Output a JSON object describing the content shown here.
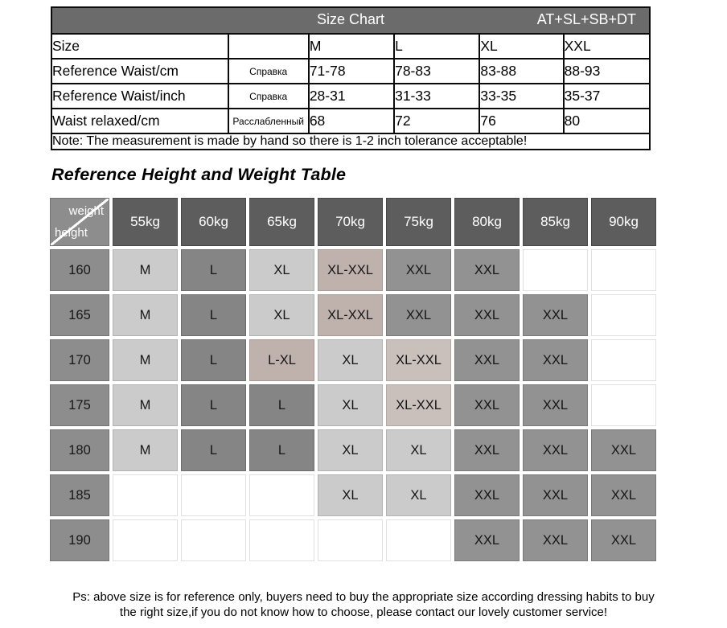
{
  "size_chart": {
    "title": "Size Chart",
    "code": "AT+SL+SB+DT",
    "rows": [
      {
        "label": "Size",
        "translation": "",
        "values": [
          "M",
          "L",
          "XL",
          "XXL"
        ]
      },
      {
        "label": "Reference Waist/cm",
        "translation": "Справка",
        "values": [
          "71-78",
          "78-83",
          "83-88",
          "88-93"
        ]
      },
      {
        "label": "Reference Waist/inch",
        "translation": "Справка",
        "values": [
          "28-31",
          "31-33",
          "33-35",
          "35-37"
        ]
      },
      {
        "label": "Waist relaxed/cm",
        "translation": "Расслабленный",
        "values": [
          "68",
          "72",
          "76",
          "80"
        ]
      }
    ],
    "note": "Note: The measurement is made by hand so there is 1-2 inch tolerance acceptable!"
  },
  "heading": "Reference Height and Weight Table",
  "matrix": {
    "corner": {
      "top_label": "weight",
      "bottom_label": "height"
    },
    "weight_headers": [
      "55kg",
      "60kg",
      "65kg",
      "70kg",
      "75kg",
      "80kg",
      "85kg",
      "90kg"
    ],
    "rows": [
      {
        "height": "160",
        "cells": [
          {
            "text": "M",
            "tone": "light"
          },
          {
            "text": "L",
            "tone": "dark"
          },
          {
            "text": "XL",
            "tone": "light"
          },
          {
            "text": "XL-XXL",
            "tone": "tan"
          },
          {
            "text": "XXL",
            "tone": "mid"
          },
          {
            "text": "XXL",
            "tone": "mid"
          },
          {
            "text": "",
            "tone": "empty"
          },
          {
            "text": "",
            "tone": "empty"
          }
        ]
      },
      {
        "height": "165",
        "cells": [
          {
            "text": "M",
            "tone": "light"
          },
          {
            "text": "L",
            "tone": "dark"
          },
          {
            "text": "XL",
            "tone": "light"
          },
          {
            "text": "XL-XXL",
            "tone": "tan"
          },
          {
            "text": "XXL",
            "tone": "mid"
          },
          {
            "text": "XXL",
            "tone": "mid"
          },
          {
            "text": "XXL",
            "tone": "mid"
          },
          {
            "text": "",
            "tone": "empty"
          }
        ]
      },
      {
        "height": "170",
        "cells": [
          {
            "text": "M",
            "tone": "light"
          },
          {
            "text": "L",
            "tone": "dark"
          },
          {
            "text": "L-XL",
            "tone": "tan"
          },
          {
            "text": "XL",
            "tone": "light"
          },
          {
            "text": "XL-XXL",
            "tone": "tan_light"
          },
          {
            "text": "XXL",
            "tone": "mid"
          },
          {
            "text": "XXL",
            "tone": "mid"
          },
          {
            "text": "",
            "tone": "empty"
          }
        ]
      },
      {
        "height": "175",
        "cells": [
          {
            "text": "M",
            "tone": "light"
          },
          {
            "text": "L",
            "tone": "dark"
          },
          {
            "text": "L",
            "tone": "dark"
          },
          {
            "text": "XL",
            "tone": "light"
          },
          {
            "text": "XL-XXL",
            "tone": "tan_light"
          },
          {
            "text": "XXL",
            "tone": "mid"
          },
          {
            "text": "XXL",
            "tone": "mid"
          },
          {
            "text": "",
            "tone": "empty"
          }
        ]
      },
      {
        "height": "180",
        "cells": [
          {
            "text": "M",
            "tone": "light"
          },
          {
            "text": "L",
            "tone": "dark"
          },
          {
            "text": "L",
            "tone": "dark"
          },
          {
            "text": "XL",
            "tone": "light"
          },
          {
            "text": "XL",
            "tone": "light"
          },
          {
            "text": "XXL",
            "tone": "mid"
          },
          {
            "text": "XXL",
            "tone": "mid"
          },
          {
            "text": "XXL",
            "tone": "mid"
          }
        ]
      },
      {
        "height": "185",
        "cells": [
          {
            "text": "",
            "tone": "empty"
          },
          {
            "text": "",
            "tone": "empty"
          },
          {
            "text": "",
            "tone": "empty"
          },
          {
            "text": "XL",
            "tone": "light"
          },
          {
            "text": "XL",
            "tone": "light"
          },
          {
            "text": "XXL",
            "tone": "mid"
          },
          {
            "text": "XXL",
            "tone": "mid"
          },
          {
            "text": "XXL",
            "tone": "mid"
          }
        ]
      },
      {
        "height": "190",
        "cells": [
          {
            "text": "",
            "tone": "empty"
          },
          {
            "text": "",
            "tone": "empty"
          },
          {
            "text": "",
            "tone": "empty"
          },
          {
            "text": "",
            "tone": "empty"
          },
          {
            "text": "",
            "tone": "empty"
          },
          {
            "text": "XXL",
            "tone": "mid"
          },
          {
            "text": "XXL",
            "tone": "mid"
          },
          {
            "text": "XXL",
            "tone": "mid"
          }
        ]
      }
    ]
  },
  "footnote": {
    "line1": "Ps: above size is for reference only, buyers need to buy the appropriate size according dressing habits to buy",
    "line2": "the right size,if you do not know how to choose, please contact our lovely customer service!"
  },
  "colors": {
    "header_bar": "#6b6b6b",
    "matrix_header": "#5d5d5d",
    "matrix_header_border": "#474747",
    "matrix_label": "#8d8d8d",
    "matrix_label_border": "#757575",
    "tones": {
      "light": {
        "bg": "#cbcbcb",
        "br": "#b2b2b2"
      },
      "dark": {
        "bg": "#858585",
        "br": "#6d6d6d"
      },
      "mid": {
        "bg": "#929292",
        "br": "#797979"
      },
      "tan": {
        "bg": "#bfb1ab",
        "br": "#a79a94"
      },
      "tan_light": {
        "bg": "#c9c0bc",
        "br": "#b1a8a4"
      },
      "empty": {
        "bg": "#ffffff",
        "br": "#e0e0e0"
      }
    }
  }
}
